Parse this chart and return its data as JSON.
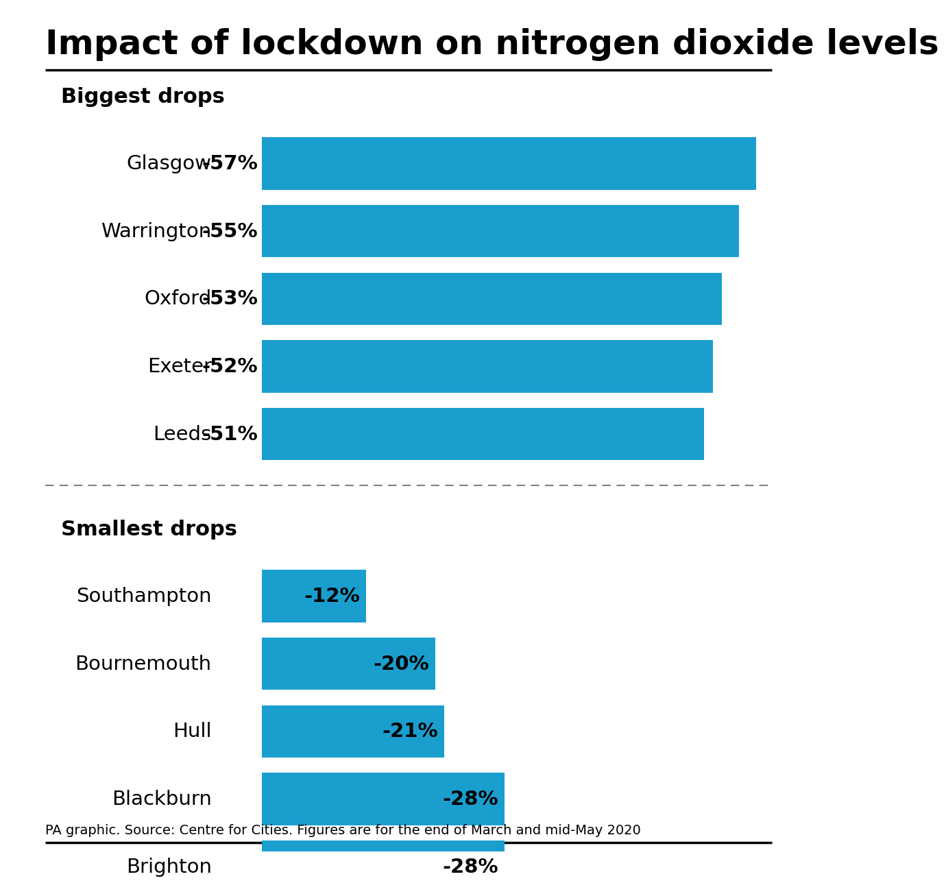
{
  "title": "Impact of lockdown on nitrogen dioxide levels",
  "bar_color": "#1a9ece",
  "background_color": "#ffffff",
  "text_color": "#000000",
  "biggest_drops": {
    "label": "Biggest drops",
    "cities": [
      "Glasgow",
      "Warrington",
      "Oxford",
      "Exeter",
      "Leeds"
    ],
    "values": [
      57,
      55,
      53,
      52,
      51
    ]
  },
  "smallest_drops": {
    "label": "Smallest drops",
    "cities": [
      "Southampton",
      "Bournemouth",
      "Hull",
      "Blackburn",
      "Brighton"
    ],
    "values": [
      12,
      20,
      21,
      28,
      28
    ]
  },
  "caption": "PA graphic. Source: Centre for Cities. Figures are for the end of March and mid-May 2020",
  "x_max": 57
}
